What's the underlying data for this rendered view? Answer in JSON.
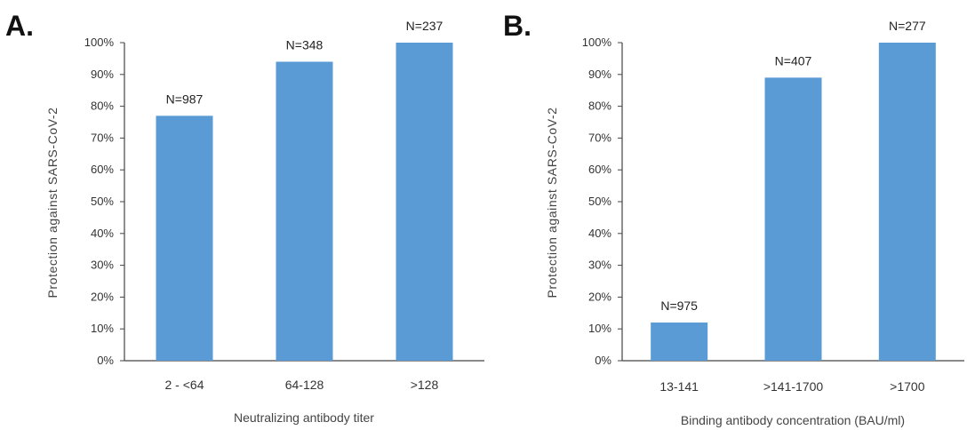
{
  "chart_data": [
    {
      "type": "bar",
      "panel_label": "A.",
      "categories": [
        "2 - <64",
        "64-128",
        ">128"
      ],
      "values": [
        77,
        94,
        100
      ],
      "data_labels": [
        "N=987",
        "N=348",
        "N=237"
      ],
      "xlabel": "Neutralizing antibody titer",
      "ylabel": "Protection against SARS-CoV-2",
      "ylim": [
        0,
        100
      ],
      "yticks": [
        "0%",
        "10%",
        "20%",
        "30%",
        "40%",
        "50%",
        "60%",
        "70%",
        "80%",
        "90%",
        "100%"
      ],
      "bar_color": "#5b9bd5",
      "grid": false
    },
    {
      "type": "bar",
      "panel_label": "B.",
      "categories": [
        "13-141",
        ">141-1700",
        ">1700"
      ],
      "values": [
        12,
        89,
        100
      ],
      "data_labels": [
        "N=975",
        "N=407",
        "N=277"
      ],
      "xlabel": "Binding antibody concentration (BAU/ml)",
      "ylabel": "Protection against SARS-CoV-2",
      "ylim": [
        0,
        100
      ],
      "yticks": [
        "0%",
        "10%",
        "20%",
        "30%",
        "40%",
        "50%",
        "60%",
        "70%",
        "80%",
        "90%",
        "100%"
      ],
      "bar_color": "#5b9bd5",
      "grid": false
    }
  ]
}
